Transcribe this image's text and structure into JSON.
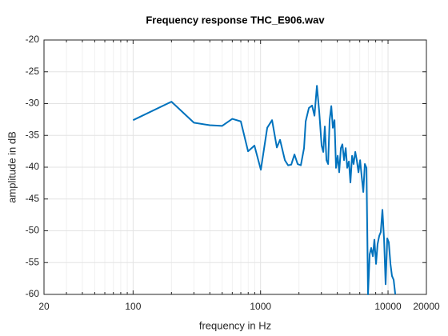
{
  "chart_data": {
    "type": "line",
    "title": "Frequency response THC_E906.wav",
    "xlabel": "frequency in Hz",
    "ylabel": "amplitude in dB",
    "xscale": "log",
    "xlim": [
      20,
      20000
    ],
    "ylim": [
      -60,
      -20
    ],
    "xticks": [
      20,
      100,
      1000,
      10000,
      20000
    ],
    "xminorticks": [
      30,
      40,
      50,
      60,
      70,
      80,
      90,
      200,
      300,
      400,
      500,
      600,
      700,
      800,
      900,
      2000,
      3000,
      4000,
      5000,
      6000,
      7000,
      8000,
      9000
    ],
    "yticks": [
      -60,
      -55,
      -50,
      -45,
      -40,
      -35,
      -30,
      -25,
      -20
    ],
    "grid": true,
    "series": [
      {
        "color": "#0072bd",
        "x": [
          100,
          200,
          300,
          400,
          500,
          600,
          700,
          798,
          895,
          1005,
          1128,
          1231,
          1342,
          1422,
          1552,
          1644,
          1741,
          1845,
          1954,
          2070,
          2193,
          2259,
          2393,
          2535,
          2648,
          2767,
          2886,
          3013,
          3105,
          3193,
          3289,
          3388,
          3483,
          3589,
          3690,
          3802,
          3908,
          4027,
          4140,
          4266,
          4385,
          4519,
          4656,
          4786,
          4932,
          5070,
          5224,
          5370,
          5534,
          5689,
          5861,
          6039,
          6209,
          6397,
          6577,
          6776,
          6966,
          7178,
          7379,
          7603,
          7816,
          8054,
          8279,
          8531,
          8770,
          9036,
          9311,
          9572,
          9863,
          10139,
          10447,
          10740,
          11066,
          11402
        ],
        "values": [
          -32.6,
          -29.7,
          -33,
          -33.4,
          -33.5,
          -32.4,
          -32.8,
          -37.5,
          -36.6,
          -40.4,
          -33.8,
          -32.6,
          -36.9,
          -35.7,
          -38.9,
          -39.7,
          -39.6,
          -38,
          -39.5,
          -39.7,
          -37,
          -32.8,
          -30.7,
          -30.3,
          -31.9,
          -27.2,
          -31.3,
          -36.6,
          -37.6,
          -33.6,
          -38.9,
          -39.5,
          -32.6,
          -30.4,
          -33.8,
          -32.6,
          -40.1,
          -38.2,
          -40.8,
          -37,
          -36.4,
          -38.9,
          -37,
          -40.1,
          -39.1,
          -42.4,
          -38.2,
          -39.5,
          -37.6,
          -38.9,
          -40.8,
          -38.9,
          -41.4,
          -43.9,
          -39.5,
          -40.1,
          -60,
          -53.7,
          -52.7,
          -54,
          -51.4,
          -55.2,
          -52.1,
          -50.8,
          -50.2,
          -46.7,
          -51.4,
          -58.4,
          -51.2,
          -51.8,
          -55.2,
          -57.1,
          -57.7,
          -60
        ]
      }
    ]
  }
}
